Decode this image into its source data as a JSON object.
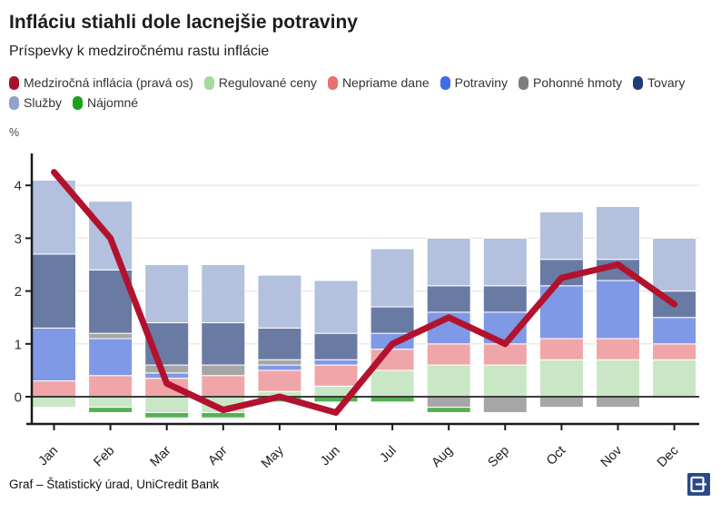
{
  "header": {
    "title": "Infláciu stiahli dole lacnejšie potraviny",
    "subtitle": "Príspevky k medziročnému rastu inflácie"
  },
  "footer": {
    "source": "Graf – Štatistický úrad, UniCredit Bank",
    "logo_letter": "E",
    "logo_color": "#2b4a85"
  },
  "chart_data": {
    "type": "bar",
    "subtype": "stacked-bars-with-line-overlay",
    "unit": "%",
    "categories": [
      "Jan",
      "Feb",
      "Mar",
      "Apr",
      "May",
      "Jun",
      "Jul",
      "Aug",
      "Sep",
      "Oct",
      "Nov",
      "Dec"
    ],
    "ylim": [
      -0.5,
      4.5
    ],
    "yticks": [
      0,
      1,
      2,
      3,
      4
    ],
    "grid": true,
    "legend_position": "top",
    "line_series": {
      "id": "inflacia",
      "name": "Medziročná inflácia (pravá os)",
      "legend_color": "#a8122c",
      "color": "#b2122e",
      "values": [
        4.25,
        3.0,
        0.25,
        -0.25,
        0.0,
        -0.3,
        1.0,
        1.5,
        1.0,
        2.25,
        2.5,
        1.75
      ]
    },
    "series": [
      {
        "id": "regulovane",
        "name": "Regulované ceny",
        "legend_color": "#a8d8a1",
        "bar_color": "#c9e7c4",
        "values": [
          -0.2,
          -0.2,
          -0.3,
          -0.3,
          0.1,
          0.2,
          0.5,
          0.6,
          0.6,
          0.7,
          0.7,
          0.7
        ]
      },
      {
        "id": "nepriame",
        "name": "Nepriame dane",
        "legend_color": "#e77070",
        "bar_color": "#f0a6a8",
        "values": [
          0.3,
          0.4,
          0.35,
          0.4,
          0.4,
          0.4,
          0.4,
          0.4,
          0.4,
          0.4,
          0.4,
          0.3
        ]
      },
      {
        "id": "potraviny",
        "name": "Potraviny",
        "legend_color": "#3e6de4",
        "bar_color": "#7f99e6",
        "values": [
          1.0,
          0.7,
          0.1,
          0.0,
          0.1,
          0.1,
          0.3,
          0.6,
          0.6,
          1.0,
          1.1,
          0.5
        ]
      },
      {
        "id": "pohonne",
        "name": "Pohonné hmoty",
        "legend_color": "#7d7d7d",
        "bar_color": "#a6a6a6",
        "values": [
          0.0,
          0.1,
          0.15,
          0.2,
          0.1,
          0.0,
          0.0,
          -0.2,
          -0.3,
          -0.2,
          -0.2,
          0.0
        ]
      },
      {
        "id": "tovary",
        "name": "Tovary",
        "legend_color": "#1e3c78",
        "bar_color": "#6a7ba3",
        "values": [
          1.4,
          1.2,
          0.8,
          0.8,
          0.6,
          0.5,
          0.5,
          0.5,
          0.5,
          0.5,
          0.4,
          0.5
        ]
      },
      {
        "id": "sluzby",
        "name": "Služby",
        "legend_color": "#8fa2cc",
        "bar_color": "#b3c0de",
        "values": [
          1.4,
          1.3,
          1.1,
          1.1,
          1.0,
          1.0,
          1.1,
          0.9,
          0.9,
          0.9,
          1.0,
          1.0
        ]
      },
      {
        "id": "najomne",
        "name": "Nájomné",
        "legend_color": "#1ca21c",
        "bar_color": "#53b253",
        "values": [
          0.0,
          -0.1,
          -0.1,
          -0.1,
          -0.1,
          -0.1,
          -0.1,
          -0.1,
          0.0,
          0.0,
          0.0,
          0.0
        ]
      }
    ]
  }
}
